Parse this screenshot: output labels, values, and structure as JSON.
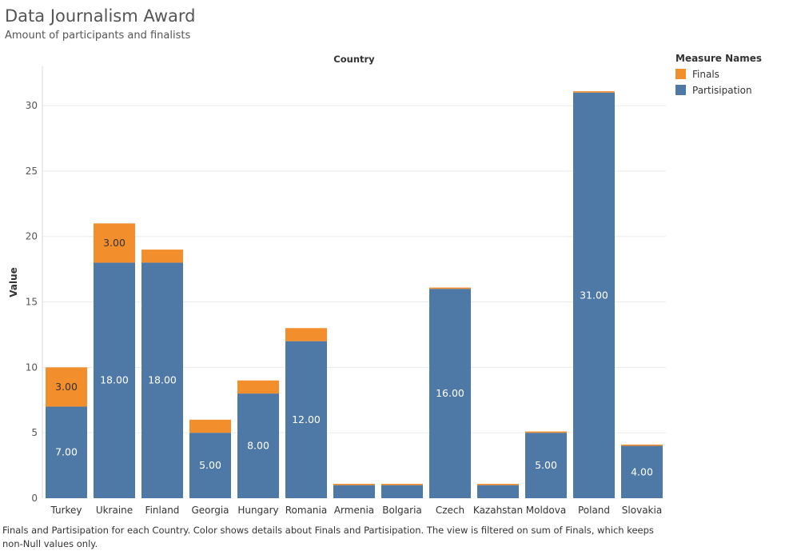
{
  "title": "Data Journalism Award",
  "subtitle": "Amount of participants and finalists",
  "caption": "Finals and Partisipation for each Country.  Color shows details about Finals and Partisipation. The view is filtered on sum of Finals, which keeps non-Null values only.",
  "legend": {
    "title": "Measure Names",
    "items": [
      {
        "label": "Finals",
        "color": "#f28e2b"
      },
      {
        "label": "Partisipation",
        "color": "#4e79a7"
      }
    ]
  },
  "chart_data": {
    "type": "bar",
    "stacked": true,
    "column_header": "Country",
    "ylabel": "Value",
    "ylim": [
      0,
      33
    ],
    "yticks": [
      0,
      5,
      10,
      15,
      20,
      25,
      30
    ],
    "grid": true,
    "categories": [
      "Turkey",
      "Ukraine",
      "Finland",
      "Georgia",
      "Hungary",
      "Romania",
      "Armenia",
      "Bolgaria",
      "Czech",
      "Kazahstan",
      "Moldova",
      "Poland",
      "Slovakia"
    ],
    "series": [
      {
        "name": "Partisipation",
        "color": "#4e79a7",
        "values": [
          7,
          18,
          18,
          5,
          8,
          12,
          1,
          1,
          16,
          1,
          5,
          31,
          4
        ],
        "labels": [
          "7.00",
          "18.00",
          "18.00",
          "5.00",
          "8.00",
          "12.00",
          "",
          "",
          "16.00",
          "",
          "5.00",
          "31.00",
          "4.00"
        ]
      },
      {
        "name": "Finals",
        "color": "#f28e2b",
        "values": [
          3,
          3,
          1,
          1,
          1,
          1,
          0.1,
          0.1,
          0.1,
          0.1,
          0.1,
          0.1,
          0.1
        ],
        "labels": [
          "3.00",
          "3.00",
          "",
          "",
          "",
          "",
          "",
          "",
          "",
          "",
          "",
          "",
          ""
        ]
      }
    ]
  }
}
